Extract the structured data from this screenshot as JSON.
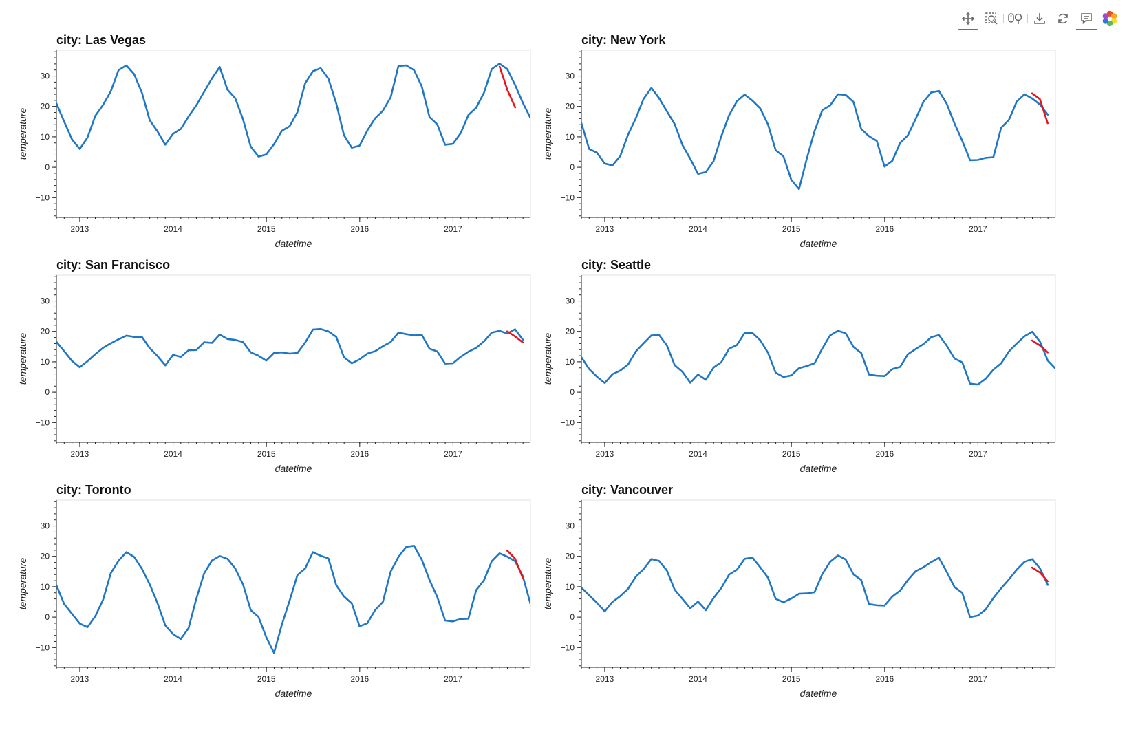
{
  "toolbar": {
    "tools": [
      {
        "name": "pan-tool",
        "icon": "pan-icon",
        "active": true
      },
      {
        "name": "box-zoom-tool",
        "icon": "box-zoom-icon",
        "active": false
      },
      {
        "name": "wheel-zoom-tool",
        "icon": "wheel-zoom-icon",
        "active": false
      },
      {
        "name": "save-tool",
        "icon": "save-icon",
        "active": false
      },
      {
        "name": "reset-tool",
        "icon": "reset-icon",
        "active": false
      },
      {
        "name": "hover-tool",
        "icon": "hover-icon",
        "active": true
      },
      {
        "name": "bokeh-logo",
        "icon": "bokeh-logo-icon",
        "active": false
      }
    ],
    "accent": "#2a7bd4"
  },
  "colors": {
    "observed": "#1f77c4",
    "forecast": "#e8141b"
  },
  "chart_data": [
    {
      "type": "line",
      "title": "city: Las Vegas",
      "xlabel": "datetime",
      "ylabel": "temperature",
      "xlim": [
        2012.75,
        2017.83
      ],
      "ylim": [
        -16.5,
        38.5
      ],
      "xticks": [
        2013,
        2014,
        2015,
        2016,
        2017
      ],
      "xtick_labels": [
        "2013",
        "2014",
        "2015",
        "2016",
        "2017"
      ],
      "yticks": [
        -10,
        0,
        10,
        20,
        30
      ],
      "ytick_labels": [
        "−10",
        "0",
        "10",
        "20",
        "30"
      ],
      "x_start": 2012.75,
      "x_step": 0.0833,
      "series": [
        {
          "values": [
            21,
            15,
            9.2,
            6,
            9.8,
            16.9,
            20.5,
            25,
            32,
            33.5,
            30.6,
            24.5,
            15.5,
            11.8,
            7.4,
            11,
            12.6,
            16.7,
            20.4,
            24.8,
            29.2,
            33,
            25.5,
            22.7,
            15.8,
            6.8,
            3.5,
            4.2,
            7.6,
            12,
            13.5,
            18.1,
            27.6,
            31.6,
            32.6,
            29.1,
            21,
            10.5,
            6.4,
            7.1,
            12.1,
            16.1,
            18.6,
            23,
            33.3,
            33.5,
            32,
            26.6,
            16.5,
            14.1,
            7.4,
            7.7,
            11.2,
            17.2,
            19.6,
            24.5,
            32.3,
            34.1,
            32.3,
            27.1,
            21.2,
            16.1
          ]
        },
        {
          "x_start": 2017.5,
          "values": [
            33.1,
            25.4,
            19.7
          ]
        }
      ]
    },
    {
      "type": "line",
      "title": "city: New York",
      "xlabel": "datetime",
      "ylabel": "temperature",
      "xlim": [
        2012.75,
        2017.83
      ],
      "ylim": [
        -16.5,
        38.5
      ],
      "xticks": [
        2013,
        2014,
        2015,
        2016,
        2017
      ],
      "xtick_labels": [
        "2013",
        "2014",
        "2015",
        "2016",
        "2017"
      ],
      "yticks": [
        -10,
        0,
        10,
        20,
        30
      ],
      "ytick_labels": [
        "−10",
        "0",
        "10",
        "20",
        "30"
      ],
      "x_start": 2012.75,
      "x_step": 0.0833,
      "series": [
        {
          "values": [
            14.5,
            6,
            4.8,
            1.2,
            0.6,
            3.7,
            10.7,
            16.1,
            22.5,
            26.1,
            22.7,
            18.4,
            14.2,
            7.3,
            2.8,
            -2.2,
            -1.6,
            2,
            10.2,
            17.1,
            21.7,
            23.9,
            21.9,
            19.4,
            14.1,
            5.6,
            3.6,
            -4.1,
            -7.2,
            2.8,
            11.9,
            18.8,
            20.3,
            24,
            23.8,
            21.5,
            12.6,
            10.2,
            8.7,
            0.2,
            2.1,
            8,
            10.5,
            15.9,
            21.5,
            24.6,
            25.1,
            20.9,
            14.4,
            8.7,
            2.3,
            2.4,
            3.1,
            3.3,
            13,
            15.6,
            21.6,
            24,
            22.6,
            20.6,
            17.3
          ]
        },
        {
          "x_start": 2017.58,
          "values": [
            24.3,
            22.4,
            14.5
          ]
        }
      ]
    },
    {
      "type": "line",
      "title": "city: San Francisco",
      "xlabel": "datetime",
      "ylabel": "temperature",
      "xlim": [
        2012.75,
        2017.83
      ],
      "ylim": [
        -16.5,
        38.5
      ],
      "xticks": [
        2013,
        2014,
        2015,
        2016,
        2017
      ],
      "xtick_labels": [
        "2013",
        "2014",
        "2015",
        "2016",
        "2017"
      ],
      "yticks": [
        -10,
        0,
        10,
        20,
        30
      ],
      "ytick_labels": [
        "−10",
        "0",
        "10",
        "20",
        "30"
      ],
      "x_start": 2012.75,
      "x_step": 0.0833,
      "series": [
        {
          "values": [
            16.6,
            13.5,
            10.3,
            8.2,
            10.2,
            12.5,
            14.6,
            16.1,
            17.4,
            18.6,
            18.2,
            18.2,
            14.5,
            11.9,
            8.8,
            12.3,
            11.6,
            13.8,
            13.9,
            16.4,
            16.2,
            19,
            17.5,
            17.2,
            16.5,
            13.1,
            12,
            10.4,
            12.9,
            13.1,
            12.7,
            12.9,
            16.3,
            20.6,
            20.8,
            20,
            18.2,
            11.5,
            9.5,
            10.8,
            12.7,
            13.5,
            15.1,
            16.5,
            19.6,
            19.1,
            18.7,
            18.9,
            14.3,
            13.4,
            9.4,
            9.5,
            11.6,
            13.3,
            14.6,
            16.7,
            19.6,
            20.2,
            19.3,
            20.7,
            17.3
          ]
        },
        {
          "x_start": 2017.58,
          "values": [
            20,
            18.4,
            16.4
          ]
        }
      ]
    },
    {
      "type": "line",
      "title": "city: Seattle",
      "xlabel": "datetime",
      "ylabel": "temperature",
      "xlim": [
        2012.75,
        2017.83
      ],
      "ylim": [
        -16.5,
        38.5
      ],
      "xticks": [
        2013,
        2014,
        2015,
        2016,
        2017
      ],
      "xtick_labels": [
        "2013",
        "2014",
        "2015",
        "2016",
        "2017"
      ],
      "yticks": [
        -10,
        0,
        10,
        20,
        30
      ],
      "ytick_labels": [
        "−10",
        "0",
        "10",
        "20",
        "30"
      ],
      "x_start": 2012.75,
      "x_step": 0.0833,
      "series": [
        {
          "values": [
            11.5,
            7.6,
            5.1,
            3,
            5.9,
            7.1,
            9.1,
            13.4,
            16.1,
            18.7,
            18.8,
            15.4,
            8.9,
            6.7,
            3.1,
            5.8,
            4.1,
            8.1,
            9.9,
            14.3,
            15.5,
            19.5,
            19.5,
            17.1,
            13,
            6.4,
            5,
            5.5,
            7.9,
            8.6,
            9.5,
            14.4,
            18.7,
            20.2,
            19.4,
            14.9,
            12.9,
            5.8,
            5.4,
            5.3,
            7.6,
            8.3,
            12.5,
            14.2,
            15.8,
            18.1,
            18.8,
            15.3,
            11.1,
            9.8,
            2.8,
            2.5,
            4.4,
            7.4,
            9.5,
            13.4,
            16,
            18.4,
            19.9,
            16.6,
            10.4,
            7.7
          ]
        },
        {
          "x_start": 2017.58,
          "values": [
            17,
            15.4,
            13.1
          ]
        }
      ]
    },
    {
      "type": "line",
      "title": "city: Toronto",
      "xlabel": "datetime",
      "ylabel": "temperature",
      "xlim": [
        2012.75,
        2017.83
      ],
      "ylim": [
        -16.5,
        38.5
      ],
      "xticks": [
        2013,
        2014,
        2015,
        2016,
        2017
      ],
      "xtick_labels": [
        "2013",
        "2014",
        "2015",
        "2016",
        "2017"
      ],
      "yticks": [
        -10,
        0,
        10,
        20,
        30
      ],
      "ytick_labels": [
        "−10",
        "0",
        "10",
        "20",
        "30"
      ],
      "x_start": 2012.75,
      "x_step": 0.0833,
      "series": [
        {
          "values": [
            10.5,
            4.3,
            1.1,
            -2.1,
            -3.3,
            0.3,
            5.7,
            14.5,
            18.6,
            21.4,
            19.8,
            15.9,
            10.8,
            4.6,
            -2.7,
            -5.6,
            -7.2,
            -3.6,
            6.1,
            14.4,
            18.6,
            20.1,
            19.2,
            16,
            10.8,
            2.3,
            0.1,
            -6.6,
            -11.8,
            -2.5,
            5.4,
            13.8,
            16,
            21.4,
            20.2,
            19.3,
            10.5,
            6.8,
            4.5,
            -3,
            -2,
            2.3,
            5,
            15,
            19.8,
            23.1,
            23.5,
            18.9,
            12.2,
            6.6,
            -1.1,
            -1.4,
            -0.6,
            -0.5,
            8.9,
            12.1,
            18.4,
            21,
            19.9,
            18.4,
            13.5,
            4.2
          ]
        },
        {
          "x_start": 2017.58,
          "values": [
            21.9,
            19.3,
            13
          ]
        }
      ]
    },
    {
      "type": "line",
      "title": "city: Vancouver",
      "xlabel": "datetime",
      "ylabel": "temperature",
      "xlim": [
        2012.75,
        2017.83
      ],
      "ylim": [
        -16.5,
        38.5
      ],
      "xticks": [
        2013,
        2014,
        2015,
        2016,
        2017
      ],
      "xtick_labels": [
        "2013",
        "2014",
        "2015",
        "2016",
        "2017"
      ],
      "yticks": [
        -10,
        0,
        10,
        20,
        30
      ],
      "ytick_labels": [
        "−10",
        "0",
        "10",
        "20",
        "30"
      ],
      "x_start": 2012.75,
      "x_step": 0.0833,
      "series": [
        {
          "values": [
            9.7,
            7.2,
            4.7,
            1.9,
            5,
            6.9,
            9.3,
            13.3,
            15.8,
            19.1,
            18.5,
            15.3,
            9,
            6,
            2.9,
            5.1,
            2.3,
            6.3,
            9.6,
            14,
            15.6,
            19.2,
            19.6,
            16.4,
            13,
            6,
            4.9,
            6.1,
            7.7,
            7.8,
            8.2,
            14.2,
            18.2,
            20.3,
            19,
            14.1,
            12.2,
            4.3,
            3.9,
            3.8,
            6.8,
            8.7,
            12.2,
            15.1,
            16.4,
            18.1,
            19.5,
            14.9,
            9.9,
            8,
            0,
            0.5,
            2.5,
            6.3,
            9.5,
            12.4,
            15.6,
            18.2,
            19.1,
            16,
            10.6
          ]
        },
        {
          "x_start": 2017.58,
          "values": [
            16.3,
            14.7,
            11.8
          ]
        }
      ]
    }
  ]
}
